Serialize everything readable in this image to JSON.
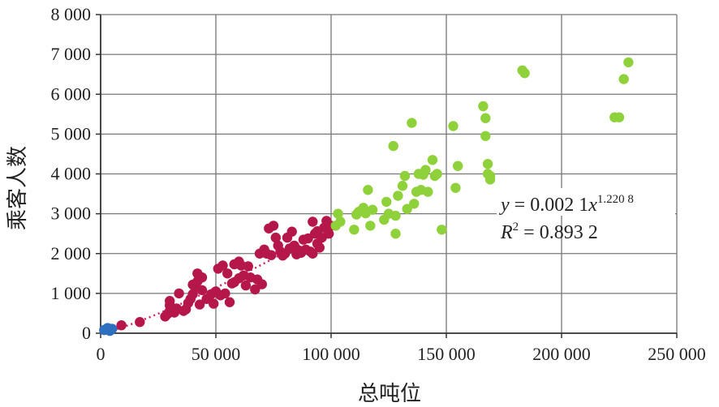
{
  "chart_data": {
    "type": "scatter",
    "xlabel": "总吨位",
    "ylabel": "乘客人数",
    "xlim": [
      0,
      250000
    ],
    "ylim": [
      0,
      8000
    ],
    "x_ticks": [
      0,
      50000,
      100000,
      150000,
      200000,
      250000
    ],
    "x_tick_labels": [
      "0",
      "50 000",
      "100 000",
      "150 000",
      "200 000",
      "250 000"
    ],
    "y_ticks": [
      0,
      1000,
      2000,
      3000,
      4000,
      5000,
      6000,
      7000,
      8000
    ],
    "y_tick_labels": [
      "0",
      "1 000",
      "2 000",
      "3 000",
      "4 000",
      "5 000",
      "6 000",
      "7 000",
      "8 000"
    ],
    "grid": true,
    "colors": {
      "small": "#2e6fbf",
      "medium": "#b5174a",
      "large": "#8fd13b",
      "trend": "#d1206a"
    },
    "annotation": {
      "y_label": "y",
      "eq_text": " = 0.002 1",
      "x_var": "x",
      "exponent": "1.220 8",
      "r_label": "R",
      "r_sup": "2",
      "r_text": " = 0.893 2"
    },
    "trendline": {
      "coef": 0.0021,
      "exponent": 1.2208,
      "x_range": [
        1000,
        102000
      ]
    },
    "series": [
      {
        "group": "small",
        "points": [
          [
            1500,
            80
          ],
          [
            2500,
            100
          ],
          [
            3500,
            120
          ],
          [
            4000,
            60
          ],
          [
            5000,
            110
          ],
          [
            3000,
            130
          ],
          [
            2000,
            90
          ]
        ]
      },
      {
        "group": "medium",
        "points": [
          [
            9000,
            200
          ],
          [
            17000,
            280
          ],
          [
            28000,
            420
          ],
          [
            29000,
            480
          ],
          [
            30000,
            560
          ],
          [
            30000,
            700
          ],
          [
            30000,
            810
          ],
          [
            32000,
            520
          ],
          [
            33000,
            620
          ],
          [
            34000,
            1000
          ],
          [
            36000,
            560
          ],
          [
            37000,
            600
          ],
          [
            38000,
            760
          ],
          [
            39000,
            860
          ],
          [
            40000,
            980
          ],
          [
            40000,
            1220
          ],
          [
            41000,
            1150
          ],
          [
            42000,
            1300
          ],
          [
            42000,
            1500
          ],
          [
            43000,
            720
          ],
          [
            44000,
            1400
          ],
          [
            44000,
            1080
          ],
          [
            46000,
            860
          ],
          [
            48000,
            980
          ],
          [
            49000,
            740
          ],
          [
            50000,
            1050
          ],
          [
            51000,
            1620
          ],
          [
            52000,
            950
          ],
          [
            53000,
            1700
          ],
          [
            54000,
            1000
          ],
          [
            55000,
            1500
          ],
          [
            56000,
            780
          ],
          [
            57000,
            1250
          ],
          [
            58000,
            1280
          ],
          [
            58000,
            1730
          ],
          [
            60000,
            1380
          ],
          [
            60000,
            1800
          ],
          [
            61000,
            1700
          ],
          [
            62000,
            1450
          ],
          [
            63000,
            1200
          ],
          [
            64000,
            1680
          ],
          [
            65000,
            1400
          ],
          [
            67000,
            1100
          ],
          [
            68000,
            1350
          ],
          [
            69000,
            2000
          ],
          [
            70000,
            1230
          ],
          [
            71000,
            2100
          ],
          [
            72000,
            2000
          ],
          [
            73000,
            2630
          ],
          [
            74000,
            1960
          ],
          [
            75000,
            2700
          ],
          [
            76000,
            2400
          ],
          [
            77000,
            2200
          ],
          [
            78000,
            2050
          ],
          [
            79000,
            1950
          ],
          [
            80000,
            2000
          ],
          [
            81000,
            2400
          ],
          [
            82000,
            2130
          ],
          [
            83000,
            2550
          ],
          [
            84000,
            2200
          ],
          [
            85000,
            1980
          ],
          [
            86000,
            2080
          ],
          [
            87000,
            2020
          ],
          [
            88000,
            2350
          ],
          [
            89000,
            2100
          ],
          [
            90000,
            2380
          ],
          [
            91000,
            2050
          ],
          [
            92000,
            2000
          ],
          [
            92000,
            2800
          ],
          [
            93000,
            2500
          ],
          [
            94000,
            2250
          ],
          [
            94000,
            2560
          ],
          [
            95000,
            2150
          ],
          [
            96000,
            2400
          ],
          [
            97000,
            2650
          ],
          [
            98000,
            2820
          ],
          [
            99000,
            2500
          ],
          [
            100000,
            2700
          ]
        ]
      },
      {
        "group": "large",
        "points": [
          [
            102000,
            2700
          ],
          [
            103000,
            3000
          ],
          [
            104000,
            2800
          ],
          [
            110000,
            2600
          ],
          [
            111000,
            2980
          ],
          [
            112000,
            3050
          ],
          [
            114000,
            3150
          ],
          [
            115000,
            3010
          ],
          [
            116000,
            3600
          ],
          [
            117000,
            2700
          ],
          [
            118000,
            3100
          ],
          [
            123000,
            2850
          ],
          [
            124000,
            3300
          ],
          [
            125000,
            3000
          ],
          [
            127000,
            4700
          ],
          [
            128000,
            2500
          ],
          [
            128000,
            2950
          ],
          [
            129000,
            3450
          ],
          [
            131000,
            3700
          ],
          [
            132000,
            3950
          ],
          [
            133000,
            3120
          ],
          [
            135000,
            5280
          ],
          [
            136000,
            3250
          ],
          [
            137000,
            3550
          ],
          [
            138000,
            4000
          ],
          [
            139000,
            3600
          ],
          [
            140000,
            3980
          ],
          [
            141000,
            4100
          ],
          [
            142000,
            3550
          ],
          [
            144000,
            4350
          ],
          [
            145000,
            3950
          ],
          [
            146000,
            4000
          ],
          [
            148000,
            2600
          ],
          [
            153000,
            5200
          ],
          [
            154000,
            3650
          ],
          [
            155000,
            4200
          ],
          [
            166000,
            5700
          ],
          [
            167000,
            5400
          ],
          [
            167000,
            4950
          ],
          [
            168000,
            4250
          ],
          [
            168000,
            4000
          ],
          [
            169000,
            3950
          ],
          [
            169000,
            3860
          ],
          [
            183000,
            6600
          ],
          [
            184000,
            6530
          ],
          [
            223000,
            5420
          ],
          [
            225000,
            5420
          ],
          [
            227000,
            6380
          ],
          [
            229000,
            6800
          ]
        ]
      }
    ]
  }
}
